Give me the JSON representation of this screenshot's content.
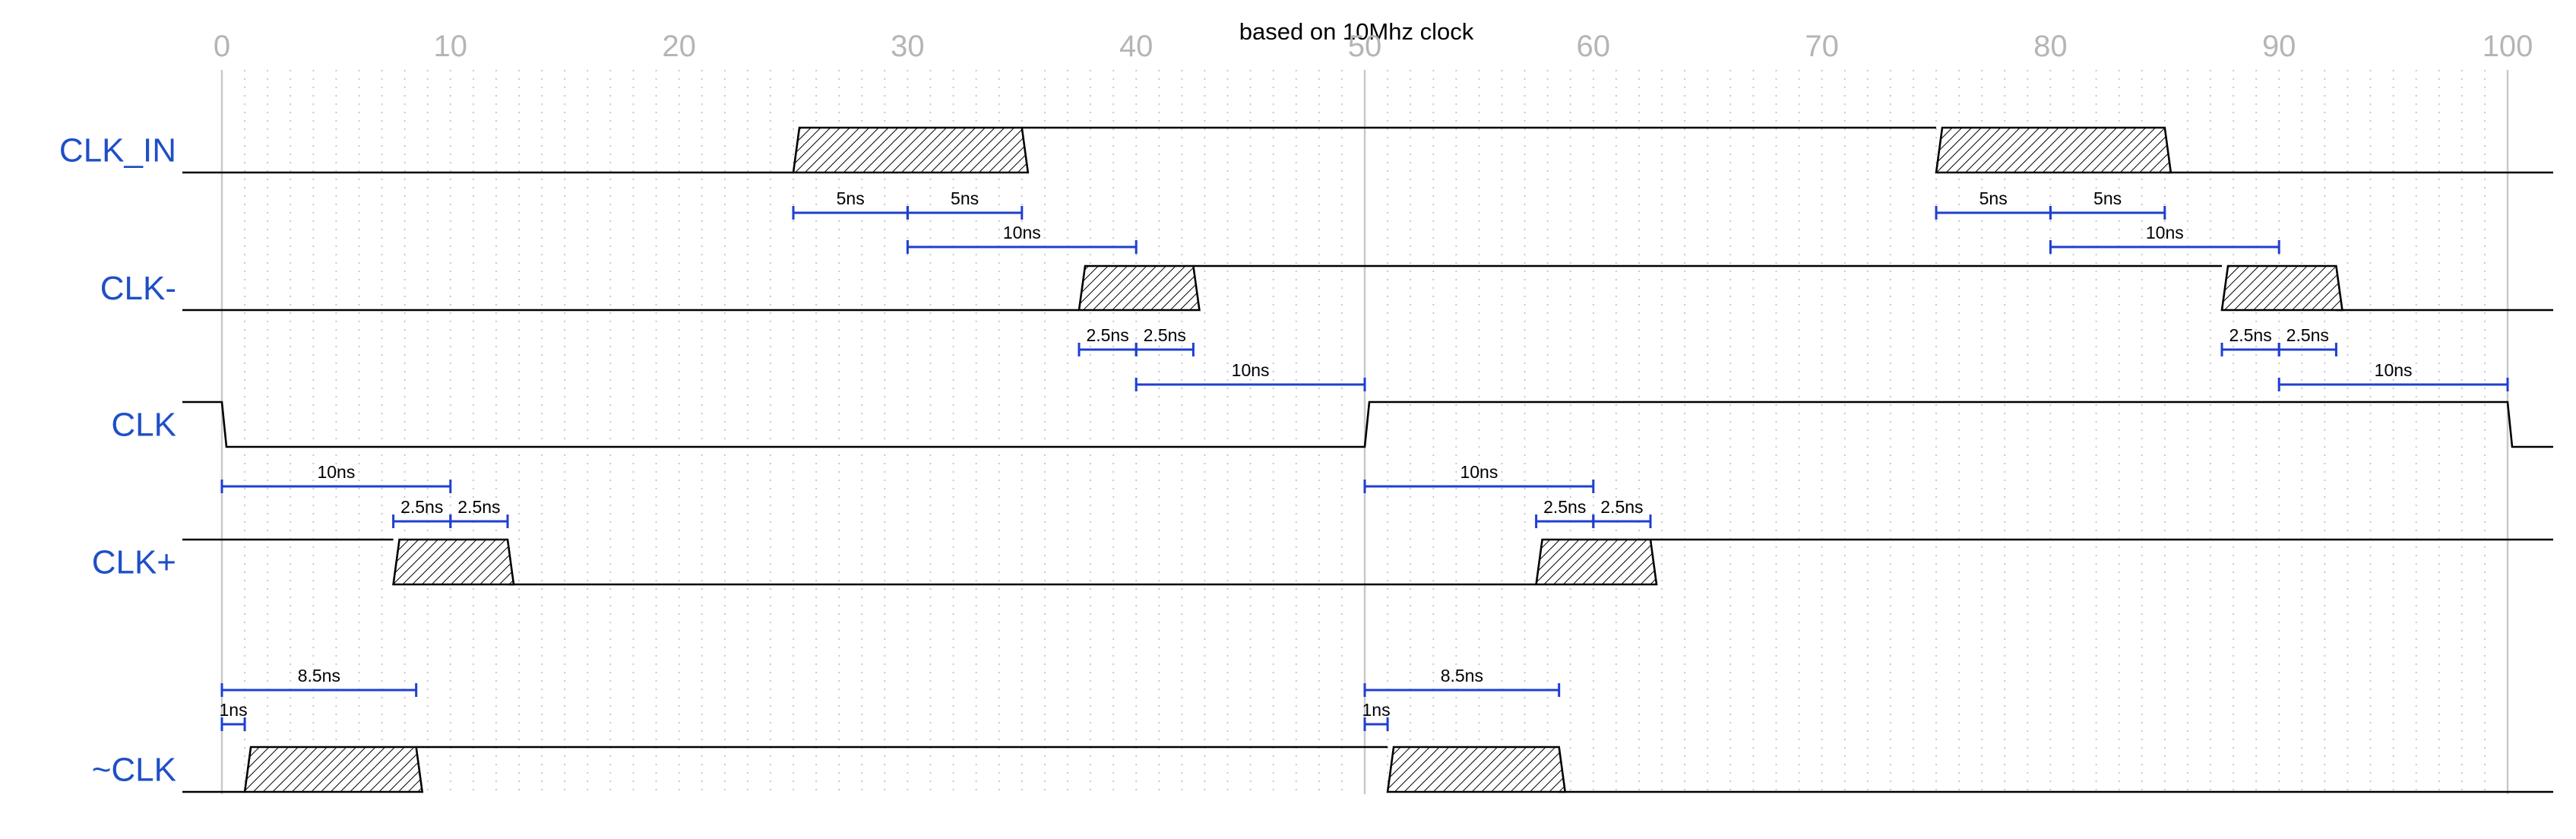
{
  "title": "based on 10Mhz clock",
  "axis": {
    "ticks": [
      0,
      10,
      20,
      30,
      40,
      50,
      60,
      70,
      80,
      90,
      100
    ],
    "range": [
      0,
      100
    ],
    "unit_minor_grid": 1,
    "solid_markers": [
      0,
      50,
      100
    ]
  },
  "signals": [
    {
      "name": "CLK_IN",
      "initial": "low",
      "transitions": [
        {
          "from": 25,
          "to": 35,
          "type": "rise"
        },
        {
          "from": 75,
          "to": 85,
          "type": "fall"
        }
      ]
    },
    {
      "name": "CLK-",
      "initial": "low",
      "transitions": [
        {
          "from": 37.5,
          "to": 42.5,
          "type": "rise"
        },
        {
          "from": 87.5,
          "to": 92.5,
          "type": "fall"
        }
      ]
    },
    {
      "name": "CLK",
      "initial": "high",
      "transitions": [
        {
          "from": 0,
          "to": 0.2,
          "type": "edge-fall"
        },
        {
          "from": 50,
          "to": 50.2,
          "type": "edge-rise"
        },
        {
          "from": 100,
          "to": 100.2,
          "type": "edge-fall"
        }
      ]
    },
    {
      "name": "CLK+",
      "initial": "high",
      "transitions": [
        {
          "from": 7.5,
          "to": 12.5,
          "type": "fall"
        },
        {
          "from": 57.5,
          "to": 62.5,
          "type": "rise"
        }
      ]
    },
    {
      "name": "~CLK",
      "initial": "low",
      "transitions": [
        {
          "from": 1,
          "to": 8.5,
          "type": "rise"
        },
        {
          "from": 51,
          "to": 58.5,
          "type": "fall"
        }
      ]
    }
  ],
  "measurements": [
    {
      "label": "5ns",
      "from": 25,
      "to": 30,
      "row": 0,
      "level": 0
    },
    {
      "label": "5ns",
      "from": 30,
      "to": 35,
      "row": 0,
      "level": 0
    },
    {
      "label": "10ns",
      "from": 30,
      "to": 40,
      "row": 0,
      "level": 1
    },
    {
      "label": "5ns",
      "from": 75,
      "to": 80,
      "row": 0,
      "level": 0
    },
    {
      "label": "5ns",
      "from": 80,
      "to": 85,
      "row": 0,
      "level": 0
    },
    {
      "label": "10ns",
      "from": 80,
      "to": 90,
      "row": 0,
      "level": 1
    },
    {
      "label": "2.5ns",
      "from": 37.5,
      "to": 40,
      "row": 1,
      "level": 0
    },
    {
      "label": "2.5ns",
      "from": 40,
      "to": 42.5,
      "row": 1,
      "level": 0
    },
    {
      "label": "10ns",
      "from": 40,
      "to": 50,
      "row": 1,
      "level": 1
    },
    {
      "label": "2.5ns",
      "from": 87.5,
      "to": 90,
      "row": 1,
      "level": 0
    },
    {
      "label": "2.5ns",
      "from": 90,
      "to": 92.5,
      "row": 1,
      "level": 0
    },
    {
      "label": "10ns",
      "from": 90,
      "to": 100,
      "row": 1,
      "level": 1
    },
    {
      "label": "10ns",
      "from": 0,
      "to": 10,
      "row": 2,
      "level": 0
    },
    {
      "label": "2.5ns",
      "from": 7.5,
      "to": 10,
      "row": 2,
      "level": 1
    },
    {
      "label": "2.5ns",
      "from": 10,
      "to": 12.5,
      "row": 2,
      "level": 1
    },
    {
      "label": "10ns",
      "from": 50,
      "to": 60,
      "row": 2,
      "level": 0
    },
    {
      "label": "2.5ns",
      "from": 57.5,
      "to": 60,
      "row": 2,
      "level": 1
    },
    {
      "label": "2.5ns",
      "from": 60,
      "to": 62.5,
      "row": 2,
      "level": 1
    },
    {
      "label": "8.5ns",
      "from": 0,
      "to": 8.5,
      "row": 3,
      "level": 0
    },
    {
      "label": "1ns",
      "from": 0,
      "to": 1,
      "row": 3,
      "level": 1
    },
    {
      "label": "8.5ns",
      "from": 50,
      "to": 58.5,
      "row": 3,
      "level": 0
    },
    {
      "label": "1ns",
      "from": 50,
      "to": 51,
      "row": 3,
      "level": 1
    }
  ],
  "colors": {
    "signal_label": "#1f4fc7",
    "measurement": "#1f3fd0",
    "tick_label": "#b5b5b5",
    "grid": "#bdbdbd",
    "wave": "#000000"
  }
}
